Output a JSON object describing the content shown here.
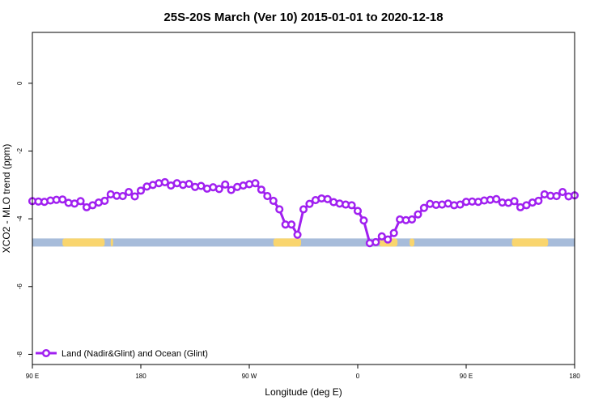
{
  "chart_data": {
    "type": "line",
    "title": "25S-20S March (Ver 10)   2015-01-01 to 2020-12-18",
    "xlabel": "Longitude (deg E)",
    "ylabel": "XCO2 - MLO trend (ppm)",
    "xlim": [
      90,
      540
    ],
    "ylim": [
      -8.3,
      1.5
    ],
    "x_ticks": [
      {
        "value": 90,
        "label": "90 E"
      },
      {
        "value": 180,
        "label": "180"
      },
      {
        "value": 270,
        "label": "90 W"
      },
      {
        "value": 360,
        "label": "0"
      },
      {
        "value": 450,
        "label": "90 E"
      },
      {
        "value": 540,
        "label": "180"
      }
    ],
    "y_ticks": [
      {
        "value": 0,
        "label": "0"
      },
      {
        "value": -2,
        "label": "-2"
      },
      {
        "value": -4,
        "label": "-4"
      },
      {
        "value": -6,
        "label": "-6"
      },
      {
        "value": -8,
        "label": "-8"
      }
    ],
    "series": [
      {
        "name": "Land (Nadir&Glint) and Ocean (Glint)",
        "color": "#a020f0",
        "x": [
          90,
          95,
          100,
          105,
          110,
          115,
          120,
          125,
          130,
          135,
          140,
          145,
          150,
          155,
          160,
          165,
          170,
          175,
          180,
          185,
          190,
          195,
          200,
          205,
          210,
          215,
          220,
          225,
          230,
          235,
          240,
          245,
          250,
          255,
          260,
          265,
          270,
          275,
          280,
          285,
          290,
          295,
          300,
          305,
          310,
          315,
          320,
          325,
          330,
          335,
          340,
          345,
          350,
          355,
          360,
          365,
          370,
          375,
          380,
          385,
          390,
          395,
          400,
          405,
          410,
          415,
          420,
          425,
          430,
          435,
          440,
          445,
          450,
          455,
          460,
          465,
          470,
          475,
          480,
          485,
          490,
          495,
          500,
          505,
          510,
          515,
          520,
          525,
          530,
          535,
          540
        ],
        "values": [
          -3.48,
          -3.49,
          -3.5,
          -3.46,
          -3.44,
          -3.43,
          -3.53,
          -3.55,
          -3.48,
          -3.66,
          -3.6,
          -3.52,
          -3.47,
          -3.28,
          -3.32,
          -3.33,
          -3.21,
          -3.34,
          -3.17,
          -3.05,
          -3.0,
          -2.95,
          -2.92,
          -3.02,
          -2.95,
          -3.0,
          -2.97,
          -3.06,
          -3.03,
          -3.11,
          -3.07,
          -3.12,
          -2.99,
          -3.15,
          -3.06,
          -3.02,
          -2.98,
          -2.95,
          -3.14,
          -3.33,
          -3.47,
          -3.72,
          -4.17,
          -4.17,
          -4.47,
          -3.72,
          -3.56,
          -3.45,
          -3.4,
          -3.42,
          -3.51,
          -3.55,
          -3.58,
          -3.6,
          -3.77,
          -4.05,
          -4.72,
          -4.69,
          -4.52,
          -4.61,
          -4.42,
          -4.02,
          -4.04,
          -4.02,
          -3.87,
          -3.68,
          -3.56,
          -3.59,
          -3.58,
          -3.55,
          -3.6,
          -3.58,
          -3.5,
          -3.49,
          -3.5,
          -3.46,
          -3.44,
          -3.42,
          -3.52,
          -3.53,
          -3.48,
          -3.66,
          -3.6,
          -3.52,
          -3.47,
          -3.28,
          -3.32,
          -3.33,
          -3.21,
          -3.34,
          -3.31
        ]
      }
    ],
    "land_ocean_bar": {
      "y": -4.7,
      "ocean_color": "#a7bcda",
      "land_color": "#f9d56e",
      "land_ranges": [
        [
          115,
          150
        ],
        [
          155,
          157
        ],
        [
          290,
          313
        ],
        [
          378,
          393
        ],
        [
          403,
          407
        ],
        [
          488,
          518
        ]
      ]
    },
    "legend": {
      "position": "bottom-left",
      "label": "Land (Nadir&Glint) and Ocean (Glint)"
    }
  }
}
